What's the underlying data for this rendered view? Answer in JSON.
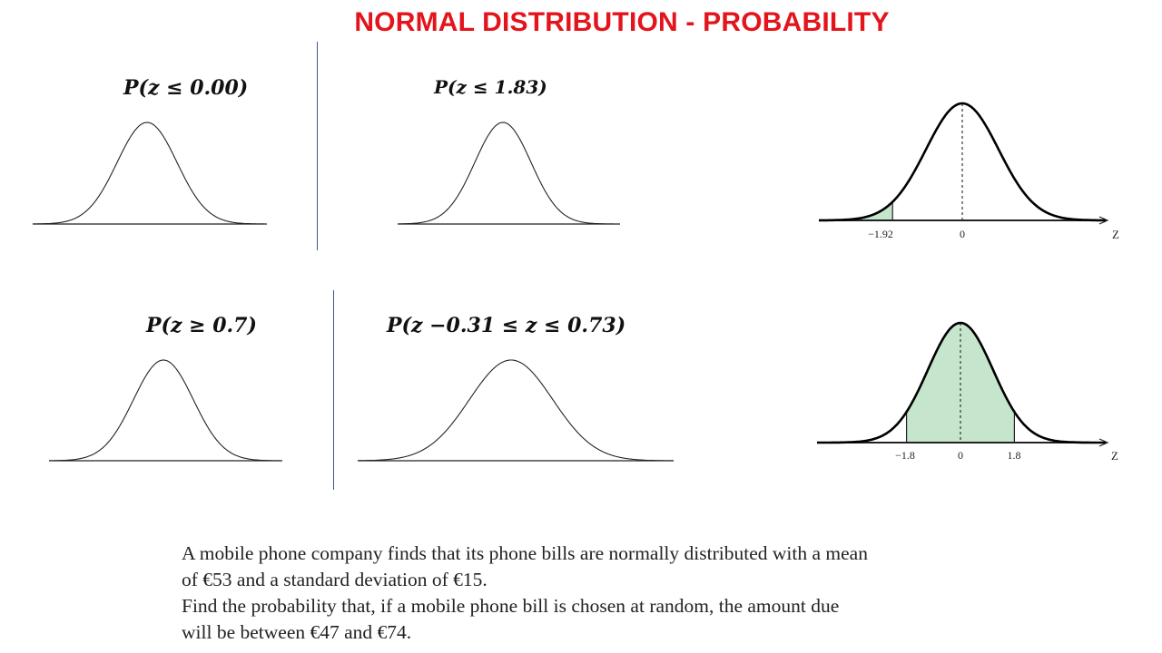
{
  "title": "NORMAL DISTRIBUTION - PROBABILITY",
  "exercises": [
    {
      "id": "a",
      "expression": "P(z ≤ 0.00)"
    },
    {
      "id": "b",
      "expression": "P(z ≤ 1.83)"
    },
    {
      "id": "c",
      "expression": "P(z ≥ 0.7)"
    },
    {
      "id": "d",
      "expression": "P(z −0.31 ≤ z ≤ 0.73)"
    }
  ],
  "examples": [
    {
      "id": "left-tail",
      "shade": "left",
      "bounds": [
        -1.92
      ],
      "ticks": [
        "−1.92",
        "0"
      ],
      "axis_label": "Z",
      "shade_color": "#c6e5cd"
    },
    {
      "id": "middle",
      "shade": "between",
      "bounds": [
        -1.8,
        1.8
      ],
      "ticks": [
        "−1.8",
        "0",
        "1.8"
      ],
      "axis_label": "Z",
      "shade_color": "#c6e5cd"
    }
  ],
  "problem": {
    "lines": [
      "A mobile phone company finds that its phone bills are normally distributed with a mean",
      "of €53 and a standard deviation of €15.",
      "Find the probability that, if a mobile phone bill is chosen at random, the amount due",
      "will be between €47 and €74."
    ]
  }
}
